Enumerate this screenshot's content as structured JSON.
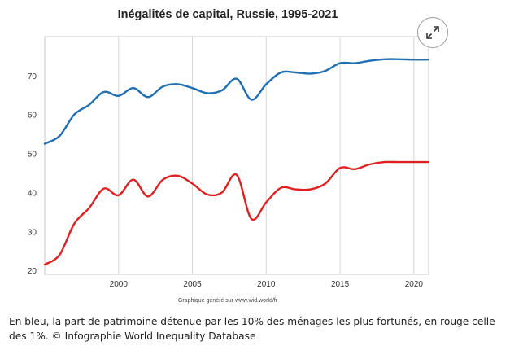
{
  "caption": "En bleu, la part de patrimoine détenue par les 10% des ménages les plus fortunés, en rouge celle des 1%. © Infographie World Inequality Database",
  "expand_icon": "expand-arrows-icon",
  "chart_data": {
    "type": "line",
    "title": "Inégalités de capital, Russie, 1995-2021",
    "source_note": "Graphique généré sur www.wid.world/fr",
    "xlabel": "",
    "ylabel": "",
    "xlim": [
      1995,
      2021
    ],
    "ylim": [
      19,
      80
    ],
    "x_ticks": [
      2000,
      2005,
      2010,
      2015,
      2020
    ],
    "y_ticks": [
      20,
      30,
      40,
      50,
      60,
      70
    ],
    "grid": true,
    "legend": "none",
    "x": [
      1995,
      1996,
      1997,
      1998,
      1999,
      2000,
      2001,
      2002,
      2003,
      2004,
      2005,
      2006,
      2007,
      2008,
      2009,
      2010,
      2011,
      2012,
      2013,
      2014,
      2015,
      2016,
      2017,
      2018,
      2019,
      2020,
      2021
    ],
    "series": [
      {
        "color": "#1f6fb2",
        "values": [
          52.5,
          54.5,
          60,
          62.5,
          65.8,
          64.8,
          66.8,
          64.5,
          67.2,
          67.8,
          66.8,
          65.5,
          66.2,
          69.2,
          63.8,
          67.8,
          70.8,
          70.8,
          70.5,
          71.2,
          73.2,
          73.2,
          73.8,
          74.2,
          74.2,
          74.1,
          74.1
        ]
      },
      {
        "color": "#e02020",
        "values": [
          21.5,
          24,
          32,
          36,
          41,
          39.3,
          43.3,
          39,
          43.3,
          44.3,
          42.3,
          39.5,
          40,
          44.5,
          33.2,
          37.5,
          41.2,
          40.8,
          40.8,
          42.3,
          46.3,
          46,
          47.2,
          47.8,
          47.8,
          47.8,
          47.8
        ]
      }
    ]
  }
}
